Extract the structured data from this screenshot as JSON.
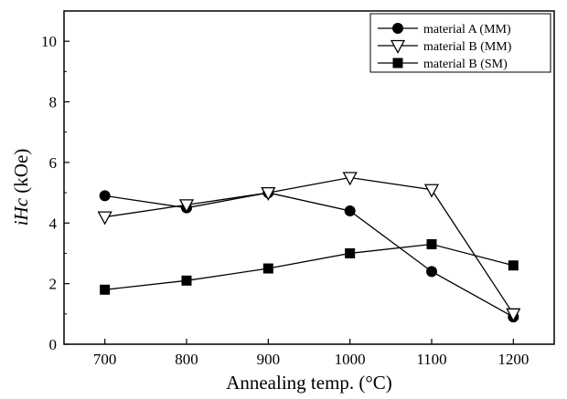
{
  "chart_data": {
    "type": "line",
    "xlabel": "Annealing temp. (°C)",
    "ylabel_italic": "iHc",
    "ylabel_unit": " (kOe)",
    "x": [
      700,
      800,
      900,
      1000,
      1100,
      1200
    ],
    "xlim": [
      650,
      1250
    ],
    "ylim": [
      0,
      11
    ],
    "x_ticks": [
      "700",
      "800",
      "900",
      "1000",
      "1100",
      "1200"
    ],
    "y_ticks": [
      "0",
      "2",
      "4",
      "6",
      "8",
      "10"
    ],
    "grid": false,
    "legend_position": "top-right",
    "series": [
      {
        "name": "material A (MM)",
        "marker": "filled-circle",
        "color": "#000000",
        "values": [
          4.9,
          4.5,
          5.0,
          4.4,
          2.4,
          0.9
        ]
      },
      {
        "name": "material B (MM)",
        "marker": "open-triangle-down",
        "color": "#000000",
        "values": [
          4.2,
          4.6,
          5.0,
          5.5,
          5.1,
          1.0
        ]
      },
      {
        "name": "material B (SM)",
        "marker": "filled-square",
        "color": "#000000",
        "values": [
          1.8,
          2.1,
          2.5,
          3.0,
          3.3,
          2.6
        ]
      }
    ]
  }
}
